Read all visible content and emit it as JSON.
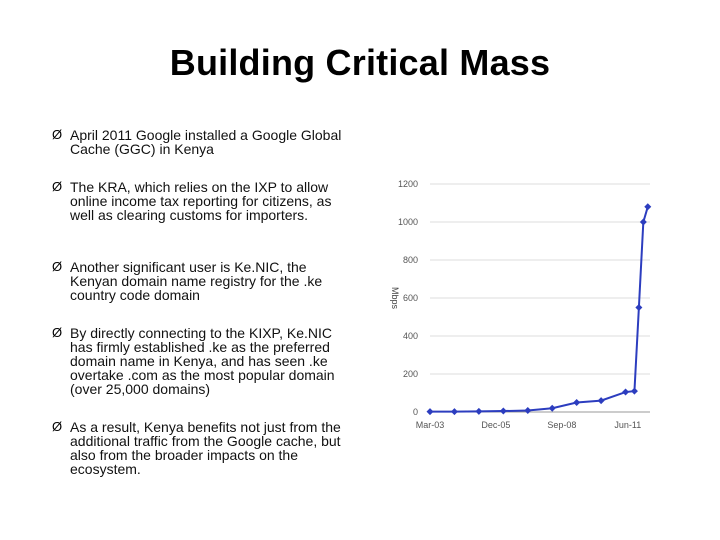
{
  "slide": {
    "title": "Building Critical Mass",
    "bullet_marker": "Ø",
    "bullets": [
      "April 2011 Google installed a Google Global Cache (GGC) in Kenya",
      "The KRA, which relies on the IXP to allow online income tax reporting for citizens, as well as clearing customs for importers.",
      "Another significant user is Ke.NIC, the Kenyan domain name registry for the .ke country code domain",
      "By directly connecting to the KIXP, Ke.NIC has firmly established .ke as the preferred domain name in Kenya, and has seen .ke overtake .com as the most popular domain (over 25,000 domains)",
      "As a result, Kenya benefits not just from the additional traffic from the Google cache, but also from the broader impacts on the ecosystem."
    ]
  },
  "chart_data": {
    "type": "line",
    "ylabel": "Mbps",
    "ylim": [
      0,
      1200
    ],
    "yticks": [
      0,
      200,
      400,
      600,
      800,
      1000,
      1200
    ],
    "xtick_labels": [
      "Mar-03",
      "Dec-05",
      "Sep-08",
      "Jun-11"
    ],
    "xlim": [
      0,
      99
    ],
    "x": [
      0,
      11,
      22,
      33,
      44,
      55,
      66,
      77,
      88,
      92,
      94,
      96,
      98
    ],
    "values": [
      2,
      2,
      3,
      5,
      8,
      20,
      50,
      60,
      105,
      110,
      550,
      1000,
      1080
    ],
    "color": "#2c3dbf",
    "grid": true
  }
}
